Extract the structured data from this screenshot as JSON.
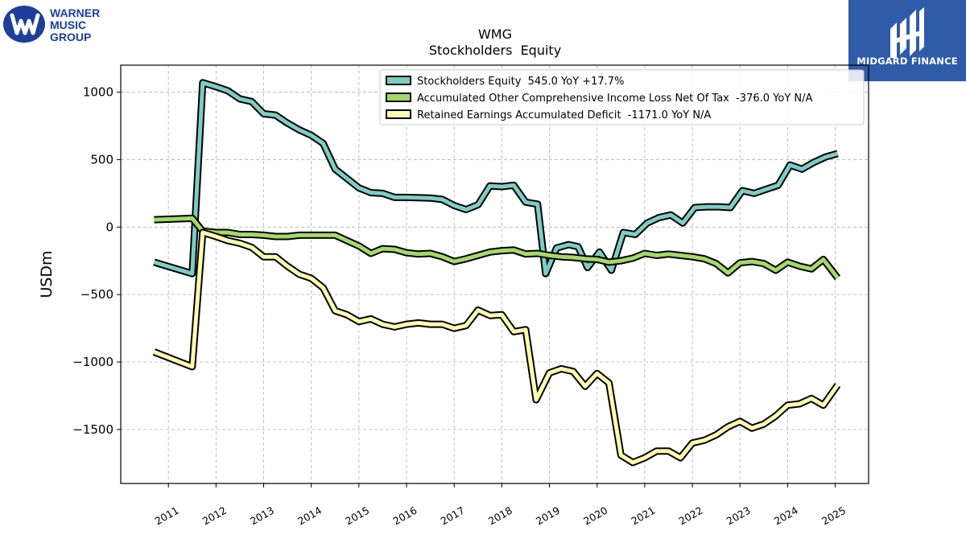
{
  "branding": {
    "left_logo_lines": [
      "WARNER",
      "MUSIC",
      "GROUP"
    ],
    "right_logo_text": "MIDGARD FINANCE"
  },
  "colors": {
    "stockholders_equity": "#7ecdc4",
    "aoci": "#a6d86a",
    "retained_earnings": "#fdfdb0",
    "outline": "#000000",
    "grid": "#b0b0b0",
    "left_logo_blue": "#1d3e9a",
    "right_logo_bg": "#2f5ba8"
  },
  "chart_data": {
    "type": "line",
    "title": "WMG",
    "subtitle": "Stockholders  Equity",
    "ylabel": "USDm",
    "xlabel": "",
    "ylim": [
      -1900,
      1200
    ],
    "xlim": [
      2010.0,
      2025.7
    ],
    "yticks": [
      1000,
      500,
      0,
      -500,
      -1000,
      -1500
    ],
    "ytick_labels": [
      "1000",
      "500",
      "0",
      "−500",
      "−1000",
      "−1500"
    ],
    "xticks": [
      2011,
      2012,
      2013,
      2014,
      2015,
      2016,
      2017,
      2018,
      2019,
      2020,
      2021,
      2022,
      2023,
      2024,
      2025
    ],
    "xtick_labels": [
      "2011",
      "2012",
      "2013",
      "2014",
      "2015",
      "2016",
      "2017",
      "2018",
      "2019",
      "2020",
      "2021",
      "2022",
      "2023",
      "2024",
      "2025"
    ],
    "grid": true,
    "legend_position": "top-right",
    "series": [
      {
        "name": "Stockholders Equity  545.0 YoY +17.7%",
        "color_key": "stockholders_equity",
        "points": [
          [
            2010.7,
            -260
          ],
          [
            2011.5,
            -345
          ],
          [
            2011.72,
            1070
          ],
          [
            2012.0,
            1040
          ],
          [
            2012.25,
            1010
          ],
          [
            2012.5,
            950
          ],
          [
            2012.75,
            930
          ],
          [
            2013.0,
            840
          ],
          [
            2013.25,
            830
          ],
          [
            2013.5,
            770
          ],
          [
            2013.75,
            720
          ],
          [
            2014.0,
            680
          ],
          [
            2014.25,
            620
          ],
          [
            2014.5,
            430
          ],
          [
            2014.75,
            360
          ],
          [
            2015.0,
            290
          ],
          [
            2015.25,
            255
          ],
          [
            2015.5,
            250
          ],
          [
            2015.75,
            220
          ],
          [
            2016.0,
            220
          ],
          [
            2016.25,
            218
          ],
          [
            2016.5,
            215
          ],
          [
            2016.75,
            205
          ],
          [
            2017.0,
            160
          ],
          [
            2017.25,
            130
          ],
          [
            2017.5,
            165
          ],
          [
            2017.75,
            305
          ],
          [
            2018.0,
            300
          ],
          [
            2018.25,
            310
          ],
          [
            2018.5,
            185
          ],
          [
            2018.75,
            170
          ],
          [
            2018.92,
            -345
          ],
          [
            2019.15,
            -155
          ],
          [
            2019.4,
            -130
          ],
          [
            2019.6,
            -145
          ],
          [
            2019.8,
            -300
          ],
          [
            2020.05,
            -185
          ],
          [
            2020.3,
            -320
          ],
          [
            2020.55,
            -40
          ],
          [
            2020.8,
            -55
          ],
          [
            2021.05,
            30
          ],
          [
            2021.3,
            70
          ],
          [
            2021.55,
            90
          ],
          [
            2021.8,
            30
          ],
          [
            2022.05,
            145
          ],
          [
            2022.3,
            150
          ],
          [
            2022.55,
            150
          ],
          [
            2022.8,
            145
          ],
          [
            2023.05,
            270
          ],
          [
            2023.3,
            250
          ],
          [
            2023.55,
            280
          ],
          [
            2023.8,
            310
          ],
          [
            2024.05,
            460
          ],
          [
            2024.3,
            430
          ],
          [
            2024.55,
            480
          ],
          [
            2024.8,
            520
          ],
          [
            2025.05,
            545
          ]
        ]
      },
      {
        "name": "Accumulated Other Comprehensive Income Loss Net Of Tax  -376.0 YoY N/A",
        "color_key": "aoci",
        "points": [
          [
            2010.7,
            55
          ],
          [
            2011.5,
            65
          ],
          [
            2011.72,
            -30
          ],
          [
            2012.0,
            -40
          ],
          [
            2012.25,
            -40
          ],
          [
            2012.5,
            -55
          ],
          [
            2012.75,
            -55
          ],
          [
            2013.0,
            -60
          ],
          [
            2013.25,
            -70
          ],
          [
            2013.5,
            -70
          ],
          [
            2013.75,
            -60
          ],
          [
            2014.0,
            -60
          ],
          [
            2014.25,
            -60
          ],
          [
            2014.5,
            -60
          ],
          [
            2014.75,
            -100
          ],
          [
            2015.0,
            -140
          ],
          [
            2015.25,
            -195
          ],
          [
            2015.5,
            -160
          ],
          [
            2015.75,
            -165
          ],
          [
            2016.0,
            -190
          ],
          [
            2016.25,
            -200
          ],
          [
            2016.5,
            -195
          ],
          [
            2016.75,
            -220
          ],
          [
            2017.0,
            -255
          ],
          [
            2017.25,
            -235
          ],
          [
            2017.5,
            -210
          ],
          [
            2017.75,
            -185
          ],
          [
            2018.0,
            -175
          ],
          [
            2018.25,
            -170
          ],
          [
            2018.5,
            -200
          ],
          [
            2018.75,
            -195
          ],
          [
            2019.0,
            -210
          ],
          [
            2019.25,
            -220
          ],
          [
            2019.5,
            -225
          ],
          [
            2019.75,
            -235
          ],
          [
            2020.0,
            -240
          ],
          [
            2020.25,
            -260
          ],
          [
            2020.5,
            -250
          ],
          [
            2020.75,
            -230
          ],
          [
            2021.0,
            -195
          ],
          [
            2021.25,
            -210
          ],
          [
            2021.5,
            -200
          ],
          [
            2021.75,
            -210
          ],
          [
            2022.0,
            -220
          ],
          [
            2022.25,
            -235
          ],
          [
            2022.5,
            -270
          ],
          [
            2022.75,
            -340
          ],
          [
            2023.0,
            -265
          ],
          [
            2023.25,
            -255
          ],
          [
            2023.5,
            -270
          ],
          [
            2023.75,
            -320
          ],
          [
            2024.0,
            -260
          ],
          [
            2024.25,
            -290
          ],
          [
            2024.5,
            -310
          ],
          [
            2024.75,
            -240
          ],
          [
            2025.05,
            -376
          ]
        ]
      },
      {
        "name": "Retained Earnings Accumulated Deficit  -1171.0 YoY N/A",
        "color_key": "retained_earnings",
        "points": [
          [
            2010.7,
            -925
          ],
          [
            2011.5,
            -1035
          ],
          [
            2011.72,
            -40
          ],
          [
            2012.0,
            -70
          ],
          [
            2012.25,
            -100
          ],
          [
            2012.5,
            -120
          ],
          [
            2012.75,
            -150
          ],
          [
            2013.0,
            -220
          ],
          [
            2013.25,
            -220
          ],
          [
            2013.5,
            -290
          ],
          [
            2013.75,
            -350
          ],
          [
            2014.0,
            -380
          ],
          [
            2014.25,
            -450
          ],
          [
            2014.5,
            -620
          ],
          [
            2014.75,
            -650
          ],
          [
            2015.0,
            -700
          ],
          [
            2015.25,
            -680
          ],
          [
            2015.5,
            -720
          ],
          [
            2015.75,
            -740
          ],
          [
            2016.0,
            -720
          ],
          [
            2016.25,
            -710
          ],
          [
            2016.5,
            -720
          ],
          [
            2016.75,
            -720
          ],
          [
            2017.0,
            -750
          ],
          [
            2017.25,
            -730
          ],
          [
            2017.5,
            -615
          ],
          [
            2017.75,
            -655
          ],
          [
            2018.0,
            -650
          ],
          [
            2018.25,
            -775
          ],
          [
            2018.5,
            -760
          ],
          [
            2018.72,
            -1280
          ],
          [
            2019.0,
            -1080
          ],
          [
            2019.25,
            -1050
          ],
          [
            2019.5,
            -1070
          ],
          [
            2019.75,
            -1180
          ],
          [
            2020.0,
            -1085
          ],
          [
            2020.25,
            -1155
          ],
          [
            2020.5,
            -1690
          ],
          [
            2020.75,
            -1745
          ],
          [
            2021.0,
            -1710
          ],
          [
            2021.25,
            -1660
          ],
          [
            2021.5,
            -1660
          ],
          [
            2021.75,
            -1710
          ],
          [
            2022.0,
            -1600
          ],
          [
            2022.25,
            -1580
          ],
          [
            2022.5,
            -1540
          ],
          [
            2022.75,
            -1480
          ],
          [
            2023.0,
            -1440
          ],
          [
            2023.25,
            -1490
          ],
          [
            2023.5,
            -1460
          ],
          [
            2023.75,
            -1400
          ],
          [
            2024.0,
            -1320
          ],
          [
            2024.25,
            -1310
          ],
          [
            2024.5,
            -1270
          ],
          [
            2024.75,
            -1320
          ],
          [
            2025.05,
            -1171
          ]
        ]
      }
    ]
  }
}
